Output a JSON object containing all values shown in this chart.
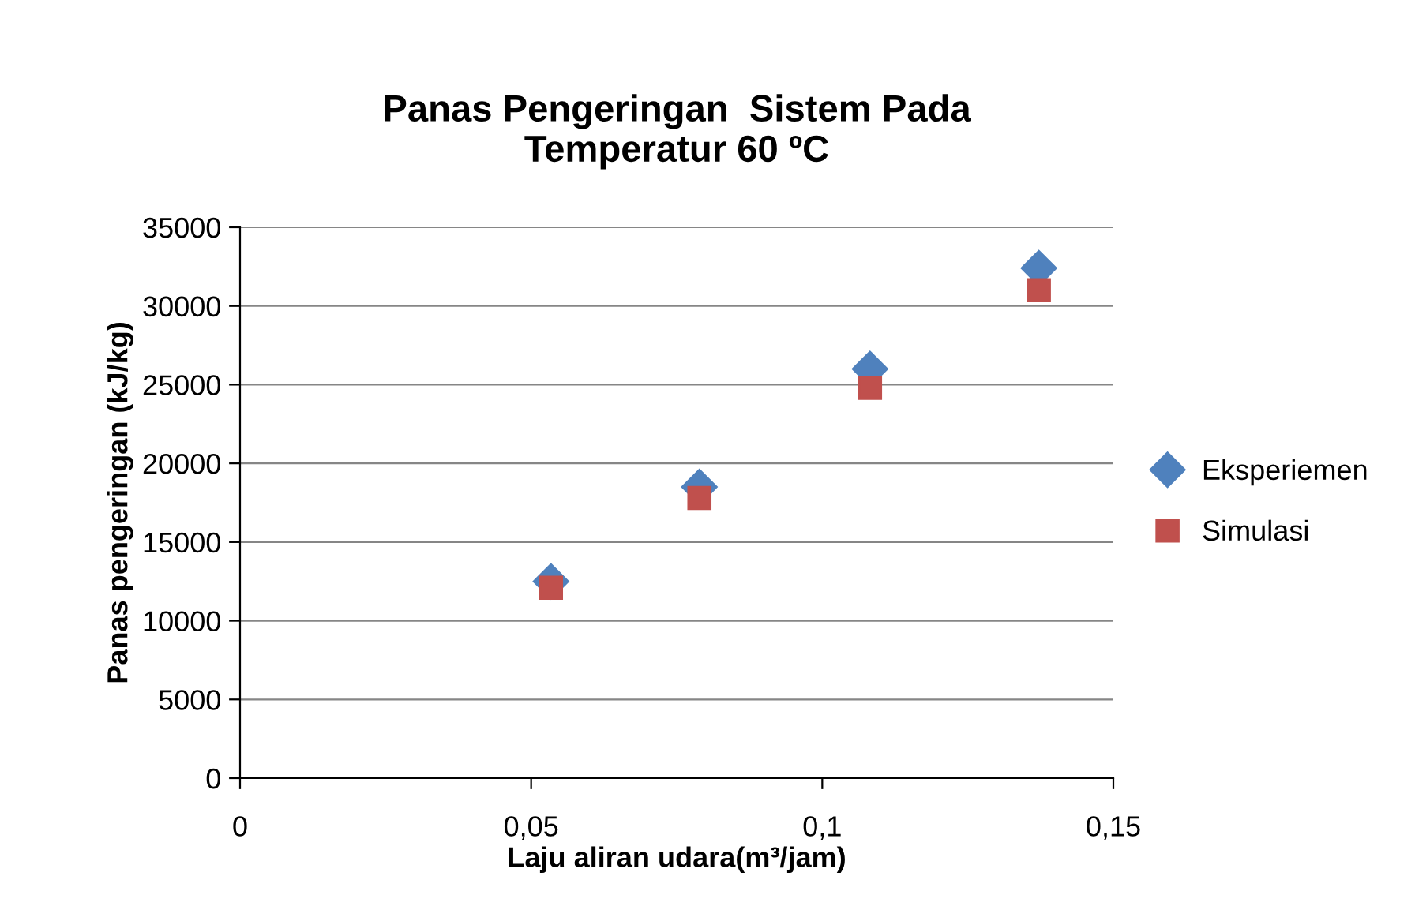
{
  "chart_data": {
    "type": "scatter",
    "title": "Panas Pengeringan  Sistem Pada\nTemperatur 60 ºC",
    "xlabel": "Laju aliran udara(m³/jam)",
    "ylabel": "Panas pengeringan (kJ/kg)",
    "x": [
      0.0534,
      0.0789,
      0.1082,
      0.1372
    ],
    "series": [
      {
        "name": "Eksperiemen",
        "color": "#4f81bd",
        "marker": "diamond",
        "values": [
          12500,
          18500,
          26000,
          32400
        ]
      },
      {
        "name": "Simulasi",
        "color": "#c0504d",
        "marker": "square",
        "values": [
          12100,
          17800,
          24800,
          31000
        ]
      }
    ],
    "xlim": [
      0,
      0.15
    ],
    "xticks": [
      0,
      {
        "value": 0.05,
        "label": "0,05"
      },
      {
        "value": 0.1,
        "label": "0,1"
      },
      {
        "value": 0.15,
        "label": "0,15"
      }
    ],
    "ylim": [
      0,
      35000
    ],
    "yticks": [
      0,
      5000,
      10000,
      15000,
      20000,
      25000,
      30000,
      35000
    ],
    "grid": "y",
    "legend": "right"
  }
}
